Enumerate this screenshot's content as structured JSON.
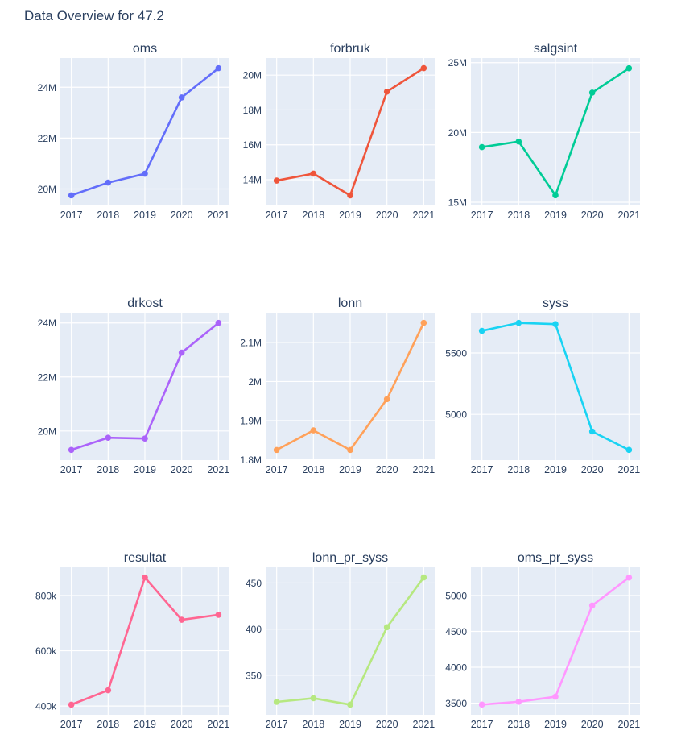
{
  "page": {
    "title": "Data Overview for 47.2"
  },
  "style": {
    "plot_bgcolor": "#E5ECF6",
    "gridcolor": "#FFFFFF",
    "text_color": "#2A3F5F",
    "paper_bgcolor": "#FFFFFF"
  },
  "chart_data": [
    {
      "type": "line",
      "title": "oms",
      "x": [
        "2017",
        "2018",
        "2019",
        "2020",
        "2021"
      ],
      "values": [
        19750000,
        20250000,
        20600000,
        23600000,
        24750000
      ],
      "color": "#636EFA",
      "ylim": [
        19350000,
        25150000
      ],
      "yticks": {
        "values": [
          20000000,
          22000000,
          24000000
        ],
        "labels": [
          "20M",
          "22M",
          "24M"
        ]
      },
      "grid": true
    },
    {
      "type": "line",
      "title": "forbruk",
      "x": [
        "2017",
        "2018",
        "2019",
        "2020",
        "2021"
      ],
      "values": [
        13950000,
        14350000,
        13100000,
        19050000,
        20400000
      ],
      "color": "#EF553B",
      "ylim": [
        12520000,
        20980000
      ],
      "yticks": {
        "values": [
          14000000,
          16000000,
          18000000,
          20000000
        ],
        "labels": [
          "14M",
          "16M",
          "18M",
          "20M"
        ]
      },
      "grid": true
    },
    {
      "type": "line",
      "title": "salgsint",
      "x": [
        "2017",
        "2018",
        "2019",
        "2020",
        "2021"
      ],
      "values": [
        18950000,
        19350000,
        15500000,
        22850000,
        24600000
      ],
      "color": "#00CC96",
      "ylim": [
        14770000,
        25330000
      ],
      "yticks": {
        "values": [
          15000000,
          20000000,
          25000000
        ],
        "labels": [
          "15M",
          "20M",
          "25M"
        ]
      },
      "grid": true
    },
    {
      "type": "line",
      "title": "drkost",
      "x": [
        "2017",
        "2018",
        "2019",
        "2020",
        "2021"
      ],
      "values": [
        19300000,
        19750000,
        19720000,
        22900000,
        24000000
      ],
      "color": "#AB63FA",
      "ylim": [
        18920000,
        24380000
      ],
      "yticks": {
        "values": [
          20000000,
          22000000,
          24000000
        ],
        "labels": [
          "20M",
          "22M",
          "24M"
        ]
      },
      "grid": true
    },
    {
      "type": "line",
      "title": "lonn",
      "x": [
        "2017",
        "2018",
        "2019",
        "2020",
        "2021"
      ],
      "values": [
        1825000,
        1875000,
        1825000,
        1955000,
        2150000
      ],
      "color": "#FFA15A",
      "ylim": [
        1799000,
        2176000
      ],
      "yticks": {
        "values": [
          1800000,
          1900000,
          2000000,
          2100000
        ],
        "labels": [
          "1.8M",
          "1.9M",
          "2M",
          "2.1M"
        ]
      },
      "grid": true
    },
    {
      "type": "line",
      "title": "syss",
      "x": [
        "2017",
        "2018",
        "2019",
        "2020",
        "2021"
      ],
      "values": [
        5680,
        5745,
        5735,
        4860,
        4710
      ],
      "color": "#19D3F3",
      "ylim": [
        4627,
        5828
      ],
      "yticks": {
        "values": [
          5000,
          5500
        ],
        "labels": [
          "5000",
          "5500"
        ]
      },
      "grid": true
    },
    {
      "type": "line",
      "title": "resultat",
      "x": [
        "2017",
        "2018",
        "2019",
        "2020",
        "2021"
      ],
      "values": [
        405000,
        457000,
        865000,
        712000,
        730000
      ],
      "color": "#FF6692",
      "ylim": [
        368200,
        901800
      ],
      "yticks": {
        "values": [
          400000,
          600000,
          800000
        ],
        "labels": [
          "400k",
          "600k",
          "800k"
        ]
      },
      "grid": true
    },
    {
      "type": "line",
      "title": "lonn_pr_syss",
      "x": [
        "2017",
        "2018",
        "2019",
        "2020",
        "2021"
      ],
      "values": [
        321,
        325,
        318,
        402,
        456
      ],
      "color": "#B6E880",
      "ylim": [
        307,
        467
      ],
      "yticks": {
        "values": [
          350,
          400,
          450
        ],
        "labels": [
          "350",
          "400",
          "450"
        ]
      },
      "grid": true
    },
    {
      "type": "line",
      "title": "oms_pr_syss",
      "x": [
        "2017",
        "2018",
        "2019",
        "2020",
        "2021"
      ],
      "values": [
        3480,
        3520,
        3590,
        4860,
        5250
      ],
      "color": "#FF97FF",
      "ylim": [
        3338,
        5392
      ],
      "yticks": {
        "values": [
          3500,
          4000,
          4500,
          5000
        ],
        "labels": [
          "3500",
          "4000",
          "4500",
          "5000"
        ]
      },
      "grid": true
    }
  ]
}
